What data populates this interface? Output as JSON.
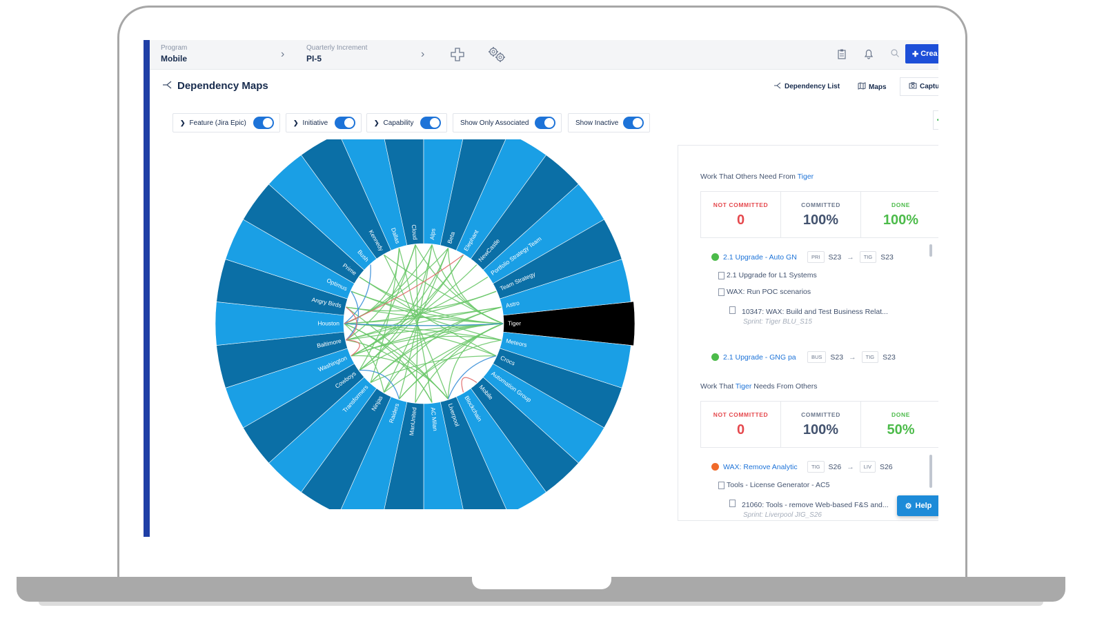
{
  "topbar": {
    "program_label": "Program",
    "program_value": "Mobile",
    "increment_label": "Quarterly Increment",
    "increment_value": "PI-5",
    "create_label": "Crea"
  },
  "header": {
    "title": "Dependency Maps",
    "dependency_list_label": "Dependency List",
    "maps_label": "Maps",
    "capture_label": "Captu"
  },
  "filters": [
    {
      "label": "Feature (Jira Epic)",
      "expandable": true,
      "on": true
    },
    {
      "label": "Initiative",
      "expandable": true,
      "on": true
    },
    {
      "label": "Capability",
      "expandable": true,
      "on": true
    },
    {
      "label": "Show Only Associated",
      "expandable": false,
      "on": true
    },
    {
      "label": "Show Inactive",
      "expandable": false,
      "on": true
    }
  ],
  "chord": {
    "selected_team": "Tiger",
    "teams": [
      "Tiger",
      "Meteors",
      "Crocs",
      "Automation Group",
      "Mobile",
      "Blockchain",
      "Liverpool",
      "AC Milan",
      "ManUnited",
      "Raiders",
      "Ninjas",
      "Transformers",
      "Cowboys",
      "Washington",
      "Baltimore",
      "Houston",
      "Angry Birds",
      "Optimus",
      "Prime",
      "Bush",
      "Kennedy",
      "Dallas",
      "Cloud",
      "Alps",
      "Beta",
      "Elephant",
      "NewCastle",
      "Portfolio Strategy Team",
      "Team Strategy",
      "Astro"
    ],
    "colors": {
      "dark": "#0b6fa6",
      "light": "#1a9fe5",
      "selected": "#000000",
      "link_green": "#6bc86a",
      "link_blue": "#3a8fd8",
      "link_red": "#e06a6a"
    }
  },
  "panel": {
    "others_need": {
      "title_prefix": "Work That Others Need From",
      "team": "Tiger",
      "not_committed_label": "NOT COMMITTED",
      "not_committed_value": "0",
      "committed_label": "COMMITTED",
      "committed_value": "100%",
      "done_label": "DONE",
      "done_value": "100%",
      "items": [
        {
          "title": "2.1 Upgrade - Auto GN",
          "status_color": "#4cbb4a",
          "from_tag": "PRI",
          "from_sprint": "S23",
          "to_tag": "TIG",
          "to_sprint": "S23"
        },
        {
          "title": "2.1 Upgrade - GNG pa",
          "status_color": "#4cbb4a",
          "from_tag": "BUS",
          "from_sprint": "S23",
          "to_tag": "TIG",
          "to_sprint": "S23"
        }
      ],
      "sub_items": [
        "2.1 Upgrade for L1 Systems",
        "WAX: Run POC scenarios"
      ],
      "story": "10347: WAX: Build and Test Business Relat...",
      "story_sprint": "Sprint: Tiger BLU_S15"
    },
    "tiger_needs": {
      "title_prefix": "Work That",
      "team": "Tiger",
      "title_suffix": "Needs From Others",
      "not_committed_label": "NOT COMMITTED",
      "not_committed_value": "0",
      "committed_label": "COMMITTED",
      "committed_value": "100%",
      "done_label": "DONE",
      "done_value": "50%",
      "item": {
        "title": "WAX: Remove Analytic",
        "status_color": "#f06a2a",
        "from_tag": "TIG",
        "from_sprint": "S26",
        "to_tag": "LIV",
        "to_sprint": "S26"
      },
      "sub_item": "Tools - License Generator - AC5",
      "story": "21060: Tools - remove Web-based F&S and...",
      "story_sprint": "Sprint: Liverpool JIG_S26"
    },
    "arrow": "→"
  },
  "help_label": "Help"
}
